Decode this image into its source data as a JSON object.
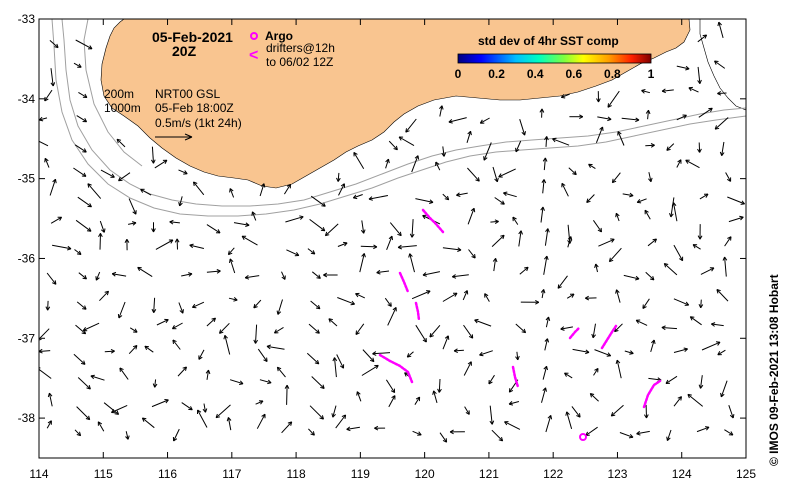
{
  "map": {
    "title_date": "05-Feb-2021",
    "title_time": "20Z",
    "legend": {
      "argo_label": "Argo",
      "argo_color": "#ff00ff",
      "drifters_line1": "drifters@12h",
      "drifters_line2": "to 06/02 12Z",
      "drifter_color": "#ff00ff",
      "drifter_symbol": "<"
    },
    "isobaths": {
      "line1": "200m",
      "line2": "1000m",
      "color": "#a0a0a0"
    },
    "current_info": {
      "product": "NRT00 GSL",
      "valid_time": "05-Feb 18:00Z",
      "scale_text": "0.5m/s (1kt 24h)"
    },
    "colorbar": {
      "title": "std dev of 4hr SST comp",
      "ticks": [
        "0",
        "0.2",
        "0.4",
        "0.6",
        "0.8",
        "1"
      ],
      "colors": [
        "#00007f",
        "#0000ff",
        "#007fff",
        "#00ffff",
        "#7fff7f",
        "#ffff00",
        "#ff7f00",
        "#ff0000",
        "#7f0000"
      ]
    },
    "credit": "© IMOS 09-Feb-2021 13:08 Hobart",
    "land_color": "#f9c590",
    "x_ticks": [
      "114",
      "115",
      "116",
      "117",
      "118",
      "119",
      "120",
      "121",
      "122",
      "123",
      "124",
      "125"
    ],
    "y_ticks": [
      "-33",
      "-34",
      "-35",
      "-36",
      "-37",
      "-38"
    ],
    "x_range": [
      114,
      125
    ],
    "y_range": [
      -38.5,
      -33
    ]
  }
}
